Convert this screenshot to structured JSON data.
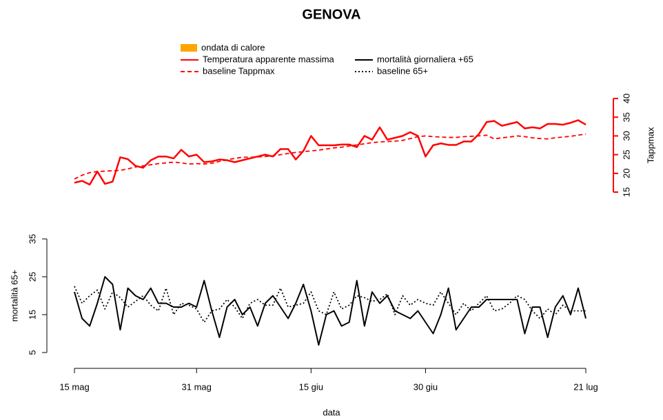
{
  "title": "GENOVA",
  "chart_data": [
    {
      "type": "line",
      "axis_side": "right",
      "axis_color": "#ff0000",
      "ylabel": "Tappmax",
      "ylim": [
        15,
        40
      ],
      "yticks": [
        15,
        20,
        25,
        30,
        35,
        40
      ],
      "highlight": {
        "name": "ondata di calore",
        "color": "#ffa500"
      },
      "series": [
        {
          "name": "Temperatura apparente massima",
          "color": "#ff0000",
          "style": "solid",
          "values": [
            17.5,
            18,
            17,
            20.5,
            17.2,
            17.8,
            24.3,
            23.8,
            22,
            21.5,
            23.5,
            24.5,
            24.5,
            24,
            26.3,
            24.5,
            25,
            23,
            23.2,
            23.7,
            23.5,
            23,
            23.5,
            24,
            24.5,
            25,
            24.5,
            26.5,
            26.5,
            23.7,
            26,
            30,
            27.5,
            27.5,
            27.5,
            27.7,
            27.7,
            27,
            30,
            29,
            32.3,
            29,
            29.5,
            30,
            31,
            30,
            24.5,
            27.5,
            28,
            27.6,
            27.6,
            28.5,
            28.5,
            30.5,
            33.7,
            34,
            32.7,
            33.2,
            33.7,
            32,
            32.3,
            32,
            33.2,
            33.2,
            33,
            33.5,
            34.2,
            33
          ]
        },
        {
          "name": "baseline Tappmax",
          "color": "#ff0000",
          "style": "dashed",
          "values": [
            18.5,
            19.5,
            20.2,
            20.5,
            20.6,
            20.7,
            20.8,
            21.2,
            21.7,
            22,
            22.3,
            22.6,
            22.8,
            23,
            22.8,
            22.5,
            22.6,
            22.5,
            22.7,
            23.2,
            23.6,
            24,
            24.3,
            24.3,
            24.4,
            24.5,
            24.7,
            25,
            25.3,
            25.6,
            25.8,
            26,
            26.2,
            26.5,
            26.8,
            27,
            27.3,
            27.6,
            27.9,
            28.2,
            28.4,
            28.5,
            28.6,
            28.8,
            29.3,
            29.8,
            30,
            29.8,
            29.7,
            29.6,
            29.6,
            29.8,
            29.9,
            30,
            30.2,
            29.2,
            29.5,
            29.7,
            30,
            29.8,
            29.5,
            29.3,
            29.2,
            29.5,
            29.7,
            29.9,
            30.2,
            30.5
          ]
        }
      ]
    },
    {
      "type": "line",
      "axis_side": "left",
      "axis_color": "#000000",
      "ylabel": "mortalità 65+",
      "xlabel": "data",
      "ylim": [
        5,
        35
      ],
      "yticks": [
        5,
        15,
        25,
        35
      ],
      "categories": [
        "15 mag",
        null,
        null,
        null,
        null,
        null,
        null,
        null,
        null,
        null,
        null,
        null,
        null,
        null,
        null,
        null,
        "31 mag",
        null,
        null,
        null,
        null,
        null,
        null,
        null,
        null,
        null,
        null,
        null,
        null,
        null,
        null,
        "15 giu",
        null,
        null,
        null,
        null,
        null,
        null,
        null,
        null,
        null,
        null,
        null,
        null,
        null,
        null,
        "30 giu",
        null,
        null,
        null,
        null,
        null,
        null,
        null,
        null,
        null,
        null,
        null,
        null,
        null,
        null,
        null,
        null,
        null,
        null,
        null,
        null,
        "21 lug"
      ],
      "series": [
        {
          "name": "mortalità giornaliera +65",
          "color": "#000000",
          "style": "solid",
          "values": [
            21,
            14,
            12,
            18,
            25,
            23,
            11,
            22,
            20,
            19,
            22,
            18,
            18,
            17,
            17,
            18,
            17,
            24,
            16,
            9,
            17,
            19,
            15,
            17,
            12,
            18,
            20,
            17,
            14,
            18,
            23,
            16,
            7,
            15,
            16,
            12,
            13,
            24,
            12,
            21,
            18,
            20,
            16,
            15,
            14,
            16,
            13,
            10,
            15,
            22,
            11,
            14,
            17,
            17,
            19,
            19,
            19,
            19,
            19,
            10,
            17,
            17,
            9,
            17,
            20,
            15,
            22,
            14
          ]
        },
        {
          "name": "baseline 65+",
          "color": "#000000",
          "style": "dotted",
          "values": [
            22.5,
            18,
            20,
            21.5,
            16.5,
            21,
            19.5,
            17,
            18.5,
            20,
            17.5,
            16,
            22,
            15,
            18,
            17.5,
            16.5,
            13,
            16,
            16.5,
            19,
            17,
            14,
            18,
            19,
            17.5,
            17.5,
            22,
            17,
            17.5,
            18,
            21,
            16,
            15,
            21,
            16.5,
            17.5,
            20,
            19.5,
            18.5,
            19,
            20.5,
            15,
            20,
            17.5,
            19,
            18,
            17.5,
            21,
            18,
            15,
            18,
            16,
            18,
            20,
            16,
            16.5,
            18,
            20,
            19,
            16,
            14,
            16.5,
            15,
            17.5,
            16,
            16,
            16
          ]
        }
      ]
    }
  ]
}
